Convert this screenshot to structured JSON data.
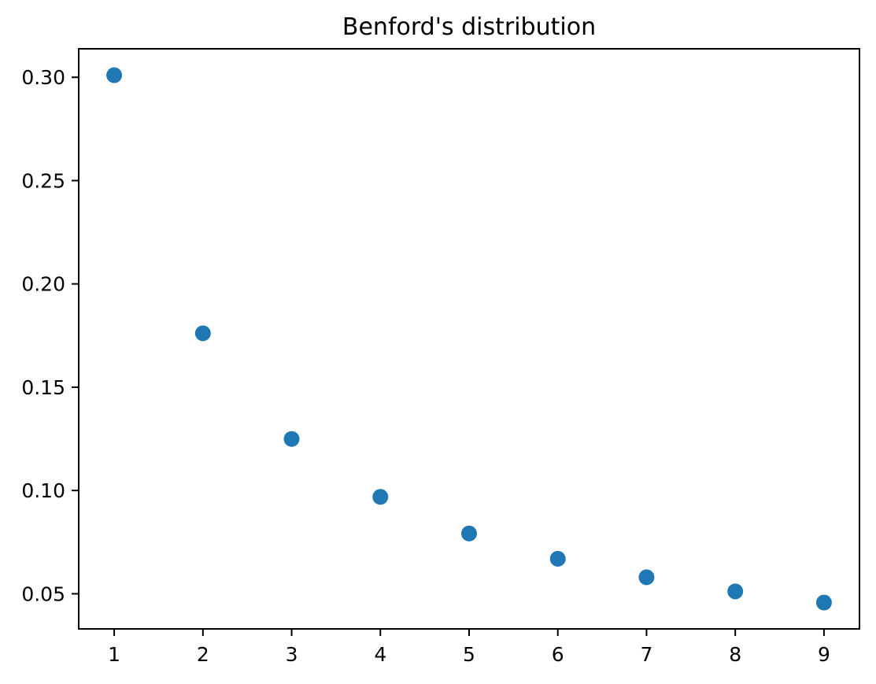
{
  "chart_data": {
    "type": "scatter",
    "title": "Benford's distribution",
    "x": [
      1,
      2,
      3,
      4,
      5,
      6,
      7,
      8,
      9
    ],
    "y": [
      0.30103,
      0.17609,
      0.12494,
      0.09691,
      0.07918,
      0.06695,
      0.05799,
      0.05115,
      0.04576
    ],
    "xlabel": "",
    "ylabel": "",
    "xticks": [
      1,
      2,
      3,
      4,
      5,
      6,
      7,
      8,
      9
    ],
    "xtick_labels": [
      "1",
      "2",
      "3",
      "4",
      "5",
      "6",
      "7",
      "8",
      "9"
    ],
    "yticks": [
      0.05,
      0.1,
      0.15,
      0.2,
      0.25,
      0.3
    ],
    "ytick_labels": [
      "0.05",
      "0.10",
      "0.15",
      "0.20",
      "0.25",
      "0.30"
    ],
    "xlim": [
      0.6,
      9.4
    ],
    "ylim": [
      0.033,
      0.3138
    ],
    "grid": false,
    "legend_position": "none",
    "marker_color": "#1f77b4",
    "marker_radius": 10,
    "frame_color": "#000000"
  }
}
